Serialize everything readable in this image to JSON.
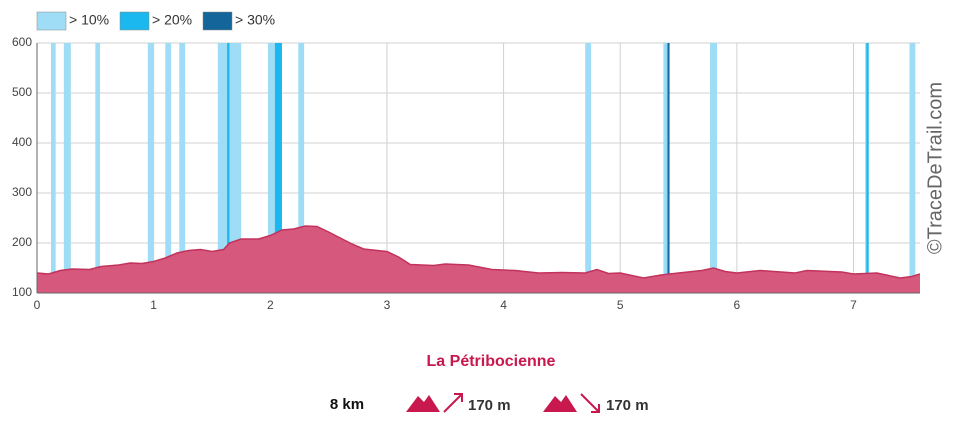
{
  "chart_data": {
    "type": "area",
    "legend": [
      {
        "name": "> 10%",
        "color": "#9fdcf5"
      },
      {
        "name": "> 20%",
        "color": "#1bb8ef"
      },
      {
        "name": "> 30%",
        "color": "#13659a"
      }
    ],
    "bands": [
      {
        "x": [
          0.12,
          0.16
        ],
        "level": 0
      },
      {
        "x": [
          0.23,
          0.29
        ],
        "level": 0
      },
      {
        "x": [
          0.5,
          0.54
        ],
        "level": 0
      },
      {
        "x": [
          0.95,
          1.0
        ],
        "level": 0
      },
      {
        "x": [
          1.1,
          1.15
        ],
        "level": 0
      },
      {
        "x": [
          1.22,
          1.27
        ],
        "level": 0
      },
      {
        "x": [
          1.55,
          1.75
        ],
        "level": 0
      },
      {
        "x": [
          1.98,
          2.1
        ],
        "level": 0
      },
      {
        "x": [
          2.24,
          2.29
        ],
        "level": 0
      },
      {
        "x": [
          4.7,
          4.75
        ],
        "level": 0
      },
      {
        "x": [
          5.37,
          5.42
        ],
        "level": 0
      },
      {
        "x": [
          5.77,
          5.83
        ],
        "level": 0
      },
      {
        "x": [
          7.1,
          7.13
        ],
        "level": 0
      },
      {
        "x": [
          7.48,
          7.53
        ],
        "level": 0
      },
      {
        "x": [
          1.63,
          1.65
        ],
        "level": 1
      },
      {
        "x": [
          2.04,
          2.1
        ],
        "level": 1
      },
      {
        "x": [
          5.4,
          5.42
        ],
        "level": 1
      },
      {
        "x": [
          7.11,
          7.13
        ],
        "level": 1
      },
      {
        "x": [
          5.41,
          5.42
        ],
        "level": 2
      }
    ],
    "x": [
      0,
      0.1,
      0.2,
      0.3,
      0.45,
      0.55,
      0.7,
      0.8,
      0.9,
      1.0,
      1.1,
      1.2,
      1.3,
      1.4,
      1.5,
      1.6,
      1.65,
      1.75,
      1.9,
      2.0,
      2.1,
      2.2,
      2.3,
      2.4,
      2.5,
      2.6,
      2.7,
      2.8,
      3.0,
      3.1,
      3.2,
      3.4,
      3.5,
      3.7,
      3.9,
      4.1,
      4.3,
      4.5,
      4.7,
      4.8,
      4.9,
      5.0,
      5.2,
      5.35,
      5.5,
      5.7,
      5.8,
      5.9,
      6.0,
      6.2,
      6.5,
      6.6,
      6.9,
      7.0,
      7.2,
      7.4,
      7.5,
      7.57
    ],
    "values": [
      140,
      138,
      145,
      148,
      147,
      153,
      156,
      160,
      159,
      163,
      170,
      180,
      185,
      187,
      183,
      187,
      200,
      208,
      208,
      215,
      226,
      228,
      234,
      233,
      222,
      210,
      198,
      188,
      183,
      172,
      157,
      155,
      158,
      156,
      147,
      145,
      140,
      141,
      140,
      147,
      139,
      140,
      130,
      136,
      140,
      145,
      150,
      143,
      140,
      145,
      140,
      145,
      142,
      138,
      140,
      130,
      133,
      138
    ],
    "color": "#d6587c",
    "line_color": "#c2325c",
    "xlim": [
      0,
      7.57
    ],
    "ylim": [
      100,
      600
    ],
    "xticks": [
      0,
      1,
      2,
      3,
      4,
      5,
      6,
      7
    ],
    "yticks": [
      100,
      200,
      300,
      400,
      500,
      600
    ],
    "grid": true
  },
  "footer": {
    "title": "La Pétribocienne",
    "distance": "8 km",
    "ascent": "170 m",
    "descent": "170 m"
  },
  "watermark": "©TraceDeTrail.com"
}
